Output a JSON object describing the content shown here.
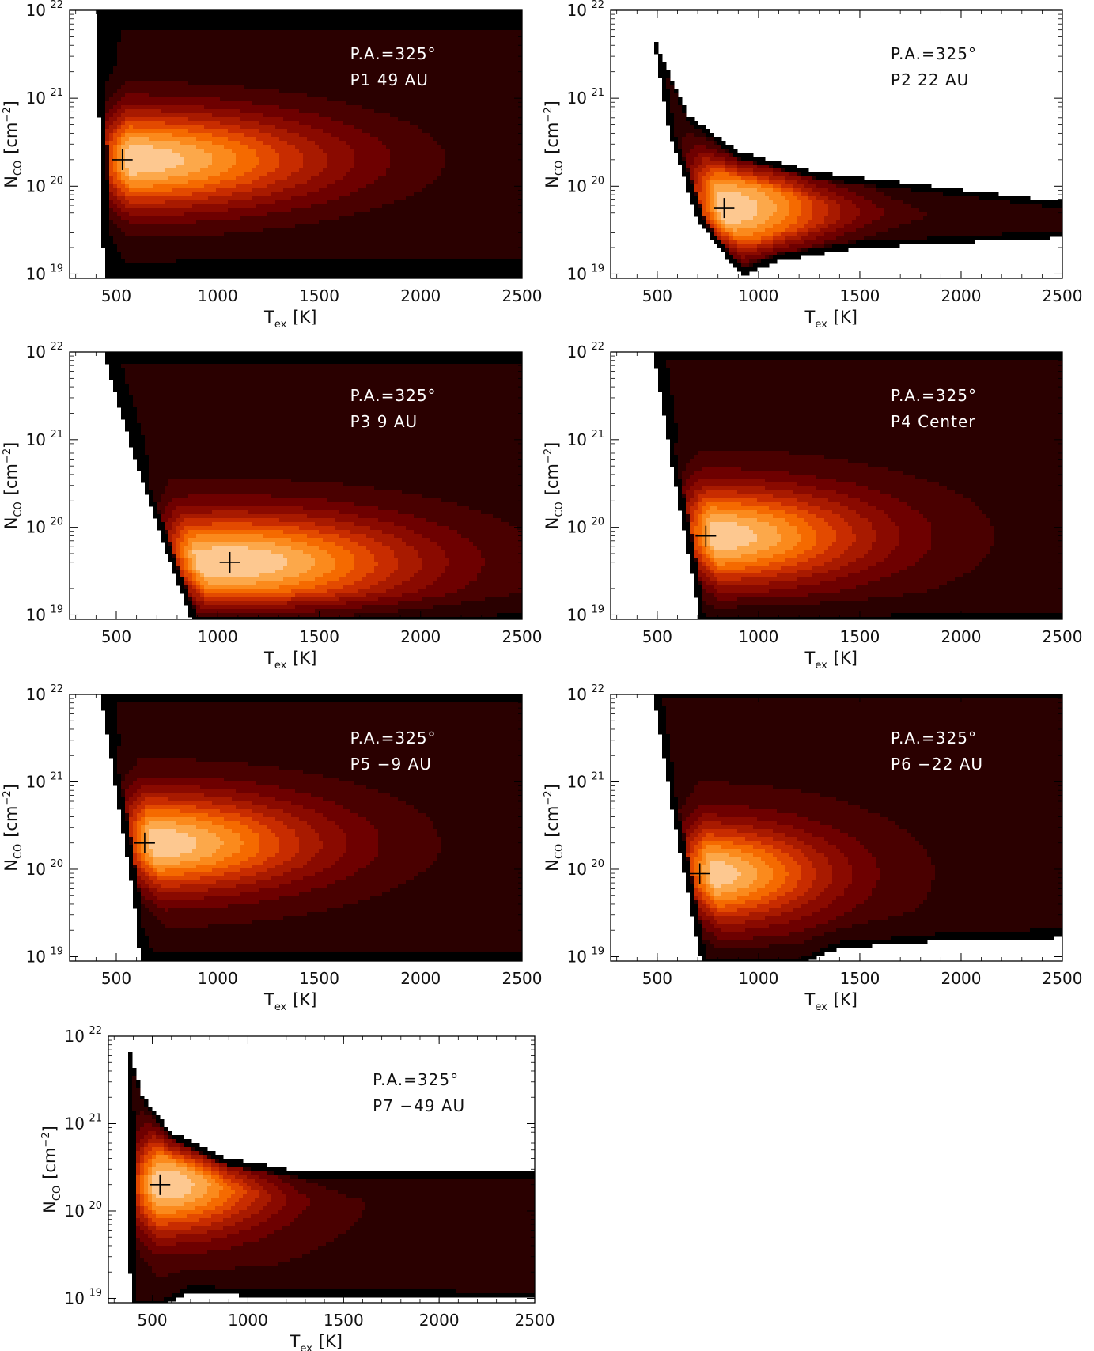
{
  "figure": {
    "common": {
      "type": "heatmap",
      "xlabel": "T",
      "xlabel_sub": "ex",
      "xlabel_unit": "[K]",
      "ylabel": "N",
      "ylabel_sub": "CO",
      "ylabel_unit": "[cm",
      "ylabel_unit_sup": "−2",
      "ylabel_unit_close": "]",
      "xlim": [
        270,
        2500
      ],
      "ylim_log10": [
        18.95,
        22
      ],
      "xticks": [
        "500",
        "1000",
        "1500",
        "2000",
        "2500"
      ],
      "xtick_values": [
        500,
        1000,
        1500,
        2000,
        2500
      ],
      "yticks_base": "10",
      "yticks_exp": [
        "19",
        "20",
        "21",
        "22"
      ],
      "ytick_values_log10": [
        19,
        20,
        21,
        22
      ]
    }
  },
  "chart_data": [
    {
      "type": "heatmap",
      "panel": "P1",
      "annotation_line1": "P.A.=325°",
      "annotation_line2": "P1 49 AU",
      "annotation_color": "#ffffff",
      "best_fit": {
        "Tex": 530,
        "log10_N": 20.3
      },
      "palette": [
        "#000000",
        "#2a0000",
        "#4a0000",
        "#6e0000",
        "#8a0a00",
        "#a81a00",
        "#c82c00",
        "#e34a00",
        "#f56a00",
        "#fb8a1c",
        "#fca84a",
        "#fdc890"
      ]
    },
    {
      "type": "heatmap",
      "panel": "P2",
      "annotation_line1": "P.A.=325°",
      "annotation_line2": "P2 22 AU",
      "annotation_color": "#111111",
      "best_fit": {
        "Tex": 830,
        "log10_N": 19.75
      },
      "palette": [
        "#000000",
        "#2a0000",
        "#4a0000",
        "#6e0000",
        "#8a0a00",
        "#a81a00",
        "#c82c00",
        "#e34a00",
        "#f56a00",
        "#fb8a1c",
        "#fca84a",
        "#fdc890"
      ]
    },
    {
      "type": "heatmap",
      "panel": "P3",
      "annotation_line1": "P.A.=325°",
      "annotation_line2": "P3 9 AU",
      "annotation_color": "#ffffff",
      "best_fit": {
        "Tex": 1060,
        "log10_N": 19.6
      },
      "palette": [
        "#000000",
        "#2a0000",
        "#4a0000",
        "#6e0000",
        "#8a0a00",
        "#a81a00",
        "#c82c00",
        "#e34a00",
        "#f56a00",
        "#fb8a1c",
        "#fca84a",
        "#fdc890"
      ]
    },
    {
      "type": "heatmap",
      "panel": "P4",
      "annotation_line1": "P.A.=325°",
      "annotation_line2": "P4 Center",
      "annotation_color": "#ffffff",
      "best_fit": {
        "Tex": 740,
        "log10_N": 19.9
      },
      "palette": [
        "#000000",
        "#2a0000",
        "#4a0000",
        "#6e0000",
        "#8a0a00",
        "#a81a00",
        "#c82c00",
        "#e34a00",
        "#f56a00",
        "#fb8a1c",
        "#fca84a",
        "#fdc890"
      ]
    },
    {
      "type": "heatmap",
      "panel": "P5",
      "annotation_line1": "P.A.=325°",
      "annotation_line2": "P5 −9 AU",
      "annotation_color": "#ffffff",
      "best_fit": {
        "Tex": 640,
        "log10_N": 20.3
      },
      "palette": [
        "#000000",
        "#2a0000",
        "#4a0000",
        "#6e0000",
        "#8a0a00",
        "#a81a00",
        "#c82c00",
        "#e34a00",
        "#f56a00",
        "#fb8a1c",
        "#fca84a",
        "#fdc890"
      ]
    },
    {
      "type": "heatmap",
      "panel": "P6",
      "annotation_line1": "P.A.=325°",
      "annotation_line2": "P6 −22 AU",
      "annotation_color": "#ffffff",
      "best_fit": {
        "Tex": 710,
        "log10_N": 19.95
      },
      "palette": [
        "#000000",
        "#2a0000",
        "#4a0000",
        "#6e0000",
        "#8a0a00",
        "#a81a00",
        "#c82c00",
        "#e34a00",
        "#f56a00",
        "#fb8a1c",
        "#fca84a",
        "#fdc890"
      ]
    },
    {
      "type": "heatmap",
      "panel": "P7",
      "annotation_line1": "P.A.=325°",
      "annotation_line2": "P7 −49 AU",
      "annotation_color": "#111111",
      "best_fit": {
        "Tex": 540,
        "log10_N": 20.3
      },
      "palette": [
        "#000000",
        "#2a0000",
        "#4a0000",
        "#6e0000",
        "#8a0a00",
        "#a81a00",
        "#c82c00",
        "#e34a00",
        "#f56a00",
        "#fb8a1c",
        "#fca84a",
        "#fdc890"
      ]
    }
  ]
}
